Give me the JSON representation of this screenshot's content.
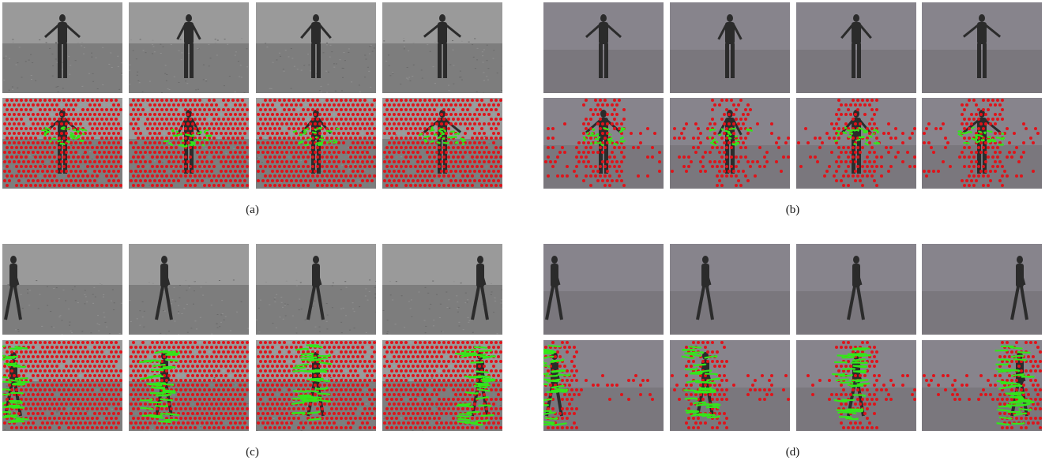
{
  "panels": [
    {
      "caption": "(a)",
      "background": "real",
      "motion": "wave"
    },
    {
      "caption": "(b)",
      "background": "segmented",
      "motion": "wave"
    },
    {
      "caption": "(c)",
      "background": "real",
      "motion": "walk"
    },
    {
      "caption": "(d)",
      "background": "segmented",
      "motion": "walk"
    }
  ],
  "colors": {
    "trajectory_point": "#e0131a",
    "trajectory_track": "#33e61a",
    "real_sky": "#9a9a9a",
    "real_ground": "#7d7d7d",
    "seg_sky": "#87848c",
    "seg_ground": "#7a777d",
    "person": "#2b2b2b"
  }
}
